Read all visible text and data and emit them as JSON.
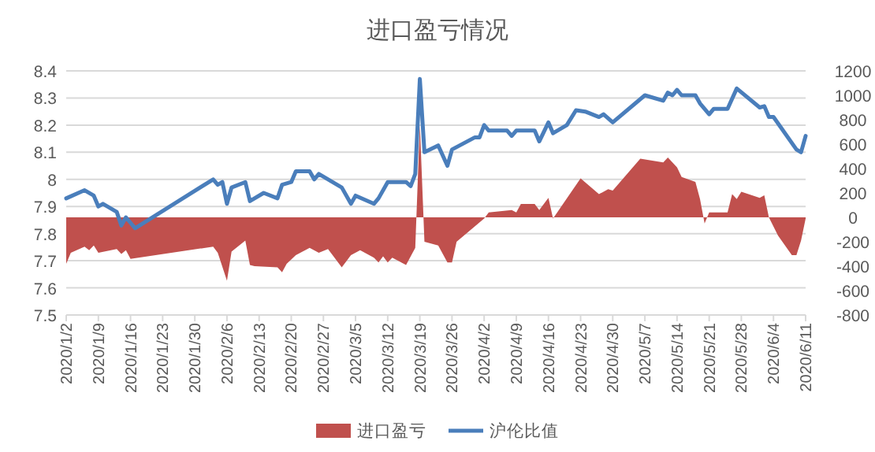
{
  "chart_data": {
    "type": "line",
    "title": "进口盈亏情况",
    "xlim": [
      "2020-01-02",
      "2020-06-11"
    ],
    "xticks": [
      {
        "value": "2020-01-02",
        "label": "2020/1/2"
      },
      {
        "value": "2020-01-09",
        "label": "2020/1/9"
      },
      {
        "value": "2020-01-16",
        "label": "2020/1/16"
      },
      {
        "value": "2020-01-23",
        "label": "2020/1/23"
      },
      {
        "value": "2020-01-30",
        "label": "2020/1/30"
      },
      {
        "value": "2020-02-06",
        "label": "2020/2/6"
      },
      {
        "value": "2020-02-13",
        "label": "2020/2/13"
      },
      {
        "value": "2020-02-20",
        "label": "2020/2/20"
      },
      {
        "value": "2020-02-27",
        "label": "2020/2/27"
      },
      {
        "value": "2020-03-05",
        "label": "2020/3/5"
      },
      {
        "value": "2020-03-12",
        "label": "2020/3/12"
      },
      {
        "value": "2020-03-19",
        "label": "2020/3/19"
      },
      {
        "value": "2020-03-26",
        "label": "2020/3/26"
      },
      {
        "value": "2020-04-02",
        "label": "2020/4/2"
      },
      {
        "value": "2020-04-09",
        "label": "2020/4/9"
      },
      {
        "value": "2020-04-16",
        "label": "2020/4/16"
      },
      {
        "value": "2020-04-23",
        "label": "2020/4/23"
      },
      {
        "value": "2020-04-30",
        "label": "2020/4/30"
      },
      {
        "value": "2020-05-07",
        "label": "2020/5/7"
      },
      {
        "value": "2020-05-14",
        "label": "2020/5/14"
      },
      {
        "value": "2020-05-21",
        "label": "2020/5/21"
      },
      {
        "value": "2020-05-28",
        "label": "2020/5/28"
      },
      {
        "value": "2020-06-04",
        "label": "2020/6/4"
      },
      {
        "value": "2020-06-11",
        "label": "2020/6/11"
      }
    ],
    "ylim": [
      7.5,
      8.4
    ],
    "yticks": [
      7.5,
      7.6,
      7.7,
      7.8,
      7.9,
      8,
      8.1,
      8.2,
      8.3,
      8.4
    ],
    "y2lim": [
      -800,
      1200
    ],
    "y2ticks": [
      -800,
      -600,
      -400,
      -200,
      0,
      200,
      400,
      600,
      800,
      1000,
      1200
    ],
    "grid": "y",
    "legend": "bottom",
    "marker": "none",
    "line_style": "solid",
    "series": [
      {
        "name": "进口盈亏",
        "type": "area",
        "axis": "y2",
        "color": "#c0504d",
        "x": [
          "2020-01-02",
          "2020-01-03",
          "2020-01-06",
          "2020-01-07",
          "2020-01-08",
          "2020-01-09",
          "2020-01-13",
          "2020-01-14",
          "2020-01-15",
          "2020-01-16",
          "2020-02-03",
          "2020-02-04",
          "2020-02-06",
          "2020-02-07",
          "2020-02-10",
          "2020-02-11",
          "2020-02-12",
          "2020-02-17",
          "2020-02-18",
          "2020-02-19",
          "2020-02-21",
          "2020-02-24",
          "2020-02-26",
          "2020-02-28",
          "2020-03-02",
          "2020-03-04",
          "2020-03-06",
          "2020-03-09",
          "2020-03-10",
          "2020-03-11",
          "2020-03-12",
          "2020-03-13",
          "2020-03-16",
          "2020-03-18",
          "2020-03-19",
          "2020-03-20",
          "2020-03-23",
          "2020-03-25",
          "2020-03-26",
          "2020-03-27",
          "2020-04-02",
          "2020-04-03",
          "2020-04-08",
          "2020-04-09",
          "2020-04-10",
          "2020-04-13",
          "2020-04-14",
          "2020-04-16",
          "2020-04-17",
          "2020-04-23",
          "2020-04-27",
          "2020-04-29",
          "2020-04-30",
          "2020-05-06",
          "2020-05-11",
          "2020-05-12",
          "2020-05-14",
          "2020-05-15",
          "2020-05-18",
          "2020-05-19",
          "2020-05-20",
          "2020-05-21",
          "2020-05-25",
          "2020-05-26",
          "2020-05-27",
          "2020-05-28",
          "2020-06-01",
          "2020-06-02",
          "2020-06-03",
          "2020-06-05",
          "2020-06-08",
          "2020-06-09",
          "2020-06-10",
          "2020-06-11"
        ],
        "values": [
          -380,
          -290,
          -240,
          -270,
          -230,
          -290,
          -260,
          -300,
          -270,
          -340,
          -240,
          -290,
          -520,
          -280,
          -190,
          -390,
          -400,
          -410,
          -450,
          -380,
          -310,
          -250,
          -290,
          -260,
          -410,
          -310,
          -270,
          -330,
          -370,
          -320,
          -370,
          -330,
          -390,
          -250,
          760,
          -200,
          -230,
          -370,
          -370,
          -200,
          -10,
          40,
          60,
          40,
          110,
          110,
          60,
          160,
          -10,
          320,
          190,
          230,
          220,
          480,
          450,
          490,
          410,
          330,
          290,
          150,
          -50,
          40,
          40,
          190,
          150,
          210,
          160,
          180,
          0,
          -150,
          -310,
          -310,
          -190,
          -10
        ]
      },
      {
        "name": "沪伦比值",
        "axis": "y",
        "color": "#4a7ebb",
        "x": [
          "2020-01-02",
          "2020-01-06",
          "2020-01-08",
          "2020-01-09",
          "2020-01-10",
          "2020-01-13",
          "2020-01-14",
          "2020-01-15",
          "2020-01-17",
          "2020-02-03",
          "2020-02-04",
          "2020-02-05",
          "2020-02-06",
          "2020-02-07",
          "2020-02-10",
          "2020-02-11",
          "2020-02-14",
          "2020-02-17",
          "2020-02-18",
          "2020-02-20",
          "2020-02-21",
          "2020-02-24",
          "2020-02-25",
          "2020-02-26",
          "2020-03-02",
          "2020-03-04",
          "2020-03-05",
          "2020-03-09",
          "2020-03-10",
          "2020-03-12",
          "2020-03-16",
          "2020-03-17",
          "2020-03-18",
          "2020-03-19",
          "2020-03-20",
          "2020-03-23",
          "2020-03-25",
          "2020-03-26",
          "2020-03-31",
          "2020-04-01",
          "2020-04-02",
          "2020-04-03",
          "2020-04-07",
          "2020-04-08",
          "2020-04-09",
          "2020-04-13",
          "2020-04-14",
          "2020-04-16",
          "2020-04-17",
          "2020-04-20",
          "2020-04-22",
          "2020-04-24",
          "2020-04-27",
          "2020-04-28",
          "2020-04-30",
          "2020-05-07",
          "2020-05-11",
          "2020-05-12",
          "2020-05-13",
          "2020-05-14",
          "2020-05-15",
          "2020-05-18",
          "2020-05-19",
          "2020-05-21",
          "2020-05-22",
          "2020-05-25",
          "2020-05-27",
          "2020-06-01",
          "2020-06-02",
          "2020-06-03",
          "2020-06-04",
          "2020-06-09",
          "2020-06-10",
          "2020-06-11"
        ],
        "values": [
          7.93,
          7.96,
          7.94,
          7.9,
          7.91,
          7.88,
          7.83,
          7.86,
          7.82,
          8.0,
          7.98,
          7.99,
          7.91,
          7.97,
          7.99,
          7.92,
          7.95,
          7.93,
          7.98,
          7.99,
          8.03,
          8.03,
          8.0,
          8.02,
          7.97,
          7.91,
          7.94,
          7.91,
          7.93,
          7.99,
          7.99,
          7.975,
          8.02,
          8.37,
          8.1,
          8.125,
          8.05,
          8.11,
          8.155,
          8.155,
          8.2,
          8.18,
          8.18,
          8.16,
          8.18,
          8.18,
          8.14,
          8.21,
          8.17,
          8.2,
          8.255,
          8.25,
          8.23,
          8.24,
          8.21,
          8.31,
          8.29,
          8.32,
          8.31,
          8.33,
          8.31,
          8.31,
          8.28,
          8.24,
          8.26,
          8.26,
          8.335,
          8.265,
          8.27,
          8.23,
          8.23,
          8.11,
          8.1,
          8.16
        ]
      }
    ]
  }
}
